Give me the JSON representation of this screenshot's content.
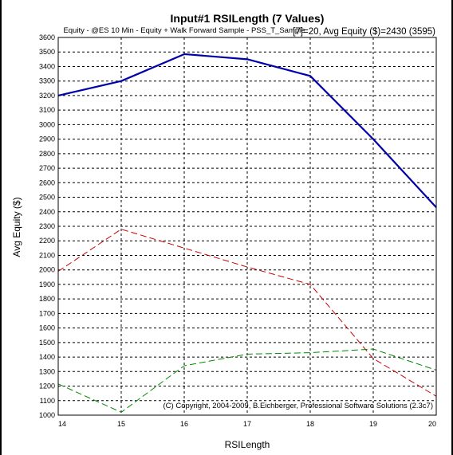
{
  "chart_data": {
    "type": "line",
    "title": "Input#1 RSILength (7 Values)",
    "subtitle": "Equity - @ES 10 Min - Equity + Walk Forward Sample - PSS_T_Sample",
    "stat_text": "[7]=20,  Avg Equity ($)=2430 (3595)",
    "xlabel": "RSILength",
    "ylabel": "Avg Equity ($)",
    "copyright": "(C) Copyright, 2004-2009, B.Eichberger, Professional Software Solutions (2.3c7)",
    "x": [
      14,
      15,
      16,
      17,
      18,
      19,
      20
    ],
    "xlim": [
      14,
      20
    ],
    "ylim": [
      1000,
      3600
    ],
    "yticks": [
      1000,
      1100,
      1200,
      1300,
      1400,
      1500,
      1600,
      1700,
      1800,
      1900,
      2000,
      2100,
      2200,
      2300,
      2400,
      2500,
      2600,
      2700,
      2800,
      2900,
      3000,
      3100,
      3200,
      3300,
      3400,
      3500,
      3600
    ],
    "grid": true,
    "series": [
      {
        "values": [
          3200,
          3300,
          3485,
          3450,
          3335,
          2900,
          2430
        ],
        "color": "#0000aa",
        "style": "solid"
      },
      {
        "values": [
          1990,
          2280,
          2150,
          2020,
          1900,
          1390,
          1130
        ],
        "color": "#cc0000",
        "style": "dashed"
      },
      {
        "values": [
          1215,
          1020,
          1340,
          1420,
          1430,
          1455,
          1310
        ],
        "color": "#008800",
        "style": "dashed"
      }
    ]
  }
}
